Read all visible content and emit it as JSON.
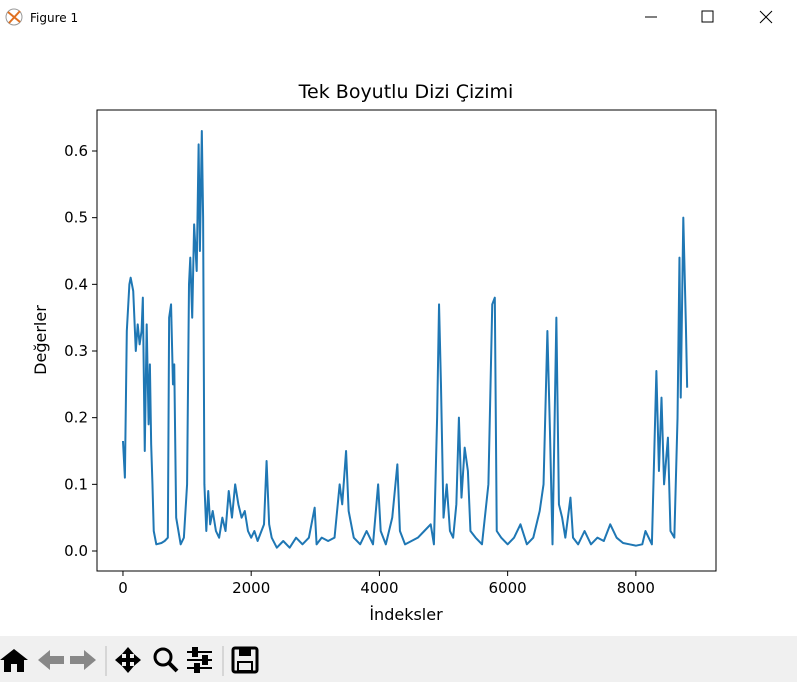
{
  "window_title": "Figure 1",
  "chart_data": {
    "type": "line",
    "title": "Tek Boyutlu Dizi Çizimi",
    "x_label": "İndeksler",
    "y_label": "Değerler",
    "color": "#1f77b4",
    "x": [
      0,
      30,
      60,
      100,
      120,
      160,
      200,
      230,
      260,
      290,
      310,
      340,
      370,
      400,
      420,
      440,
      460,
      480,
      520,
      600,
      650,
      700,
      720,
      750,
      780,
      800,
      830,
      900,
      950,
      1000,
      1030,
      1050,
      1080,
      1110,
      1150,
      1180,
      1200,
      1230,
      1250,
      1270,
      1300,
      1330,
      1360,
      1400,
      1450,
      1500,
      1550,
      1600,
      1650,
      1700,
      1750,
      1800,
      1850,
      1900,
      1950,
      2000,
      2050,
      2100,
      2200,
      2240,
      2280,
      2320,
      2400,
      2500,
      2600,
      2700,
      2800,
      2900,
      2990,
      3020,
      3100,
      3200,
      3300,
      3380,
      3420,
      3480,
      3520,
      3600,
      3700,
      3800,
      3900,
      3980,
      4020,
      4100,
      4200,
      4280,
      4320,
      4400,
      4500,
      4600,
      4700,
      4800,
      4850,
      4900,
      4930,
      4960,
      5000,
      5050,
      5100,
      5150,
      5200,
      5240,
      5280,
      5330,
      5380,
      5420,
      5500,
      5600,
      5700,
      5760,
      5800,
      5830,
      5900,
      6000,
      6100,
      6200,
      6300,
      6400,
      6500,
      6560,
      6620,
      6660,
      6700,
      6760,
      6800,
      6850,
      6900,
      6980,
      7020,
      7100,
      7200,
      7300,
      7400,
      7500,
      7600,
      7700,
      7800,
      7900,
      8000,
      8100,
      8150,
      8200,
      8250,
      8320,
      8360,
      8400,
      8440,
      8500,
      8540,
      8600,
      8650,
      8680,
      8700,
      8740,
      8780,
      8800
    ],
    "values": [
      0.165,
      0.11,
      0.33,
      0.4,
      0.41,
      0.39,
      0.3,
      0.34,
      0.31,
      0.33,
      0.38,
      0.15,
      0.34,
      0.19,
      0.28,
      0.16,
      0.1,
      0.03,
      0.01,
      0.012,
      0.015,
      0.02,
      0.35,
      0.37,
      0.25,
      0.28,
      0.05,
      0.01,
      0.02,
      0.1,
      0.4,
      0.44,
      0.35,
      0.49,
      0.42,
      0.61,
      0.45,
      0.63,
      0.5,
      0.1,
      0.03,
      0.09,
      0.04,
      0.06,
      0.03,
      0.02,
      0.05,
      0.03,
      0.09,
      0.05,
      0.1,
      0.07,
      0.05,
      0.06,
      0.03,
      0.02,
      0.03,
      0.015,
      0.04,
      0.135,
      0.04,
      0.02,
      0.005,
      0.015,
      0.005,
      0.02,
      0.01,
      0.02,
      0.065,
      0.01,
      0.02,
      0.015,
      0.02,
      0.1,
      0.07,
      0.15,
      0.06,
      0.02,
      0.01,
      0.03,
      0.01,
      0.1,
      0.03,
      0.01,
      0.05,
      0.13,
      0.03,
      0.01,
      0.015,
      0.02,
      0.03,
      0.04,
      0.01,
      0.2,
      0.37,
      0.25,
      0.05,
      0.1,
      0.03,
      0.02,
      0.07,
      0.2,
      0.08,
      0.155,
      0.12,
      0.03,
      0.02,
      0.01,
      0.1,
      0.37,
      0.38,
      0.03,
      0.02,
      0.01,
      0.02,
      0.04,
      0.01,
      0.02,
      0.06,
      0.1,
      0.33,
      0.18,
      0.01,
      0.35,
      0.07,
      0.05,
      0.02,
      0.08,
      0.02,
      0.01,
      0.03,
      0.01,
      0.02,
      0.015,
      0.04,
      0.02,
      0.012,
      0.01,
      0.008,
      0.01,
      0.03,
      0.02,
      0.01,
      0.27,
      0.12,
      0.23,
      0.1,
      0.17,
      0.03,
      0.02,
      0.2,
      0.44,
      0.23,
      0.5,
      0.34,
      0.245
    ],
    "xlim": [
      -405,
      9250
    ],
    "ylim": [
      -0.03,
      0.6615
    ],
    "xticks": [
      0,
      2000,
      4000,
      6000,
      8000
    ],
    "yticks": [
      {
        "value": 0,
        "label": "0.0"
      },
      0.1,
      0.2,
      0.3,
      0.4,
      0.5,
      0.6
    ]
  }
}
